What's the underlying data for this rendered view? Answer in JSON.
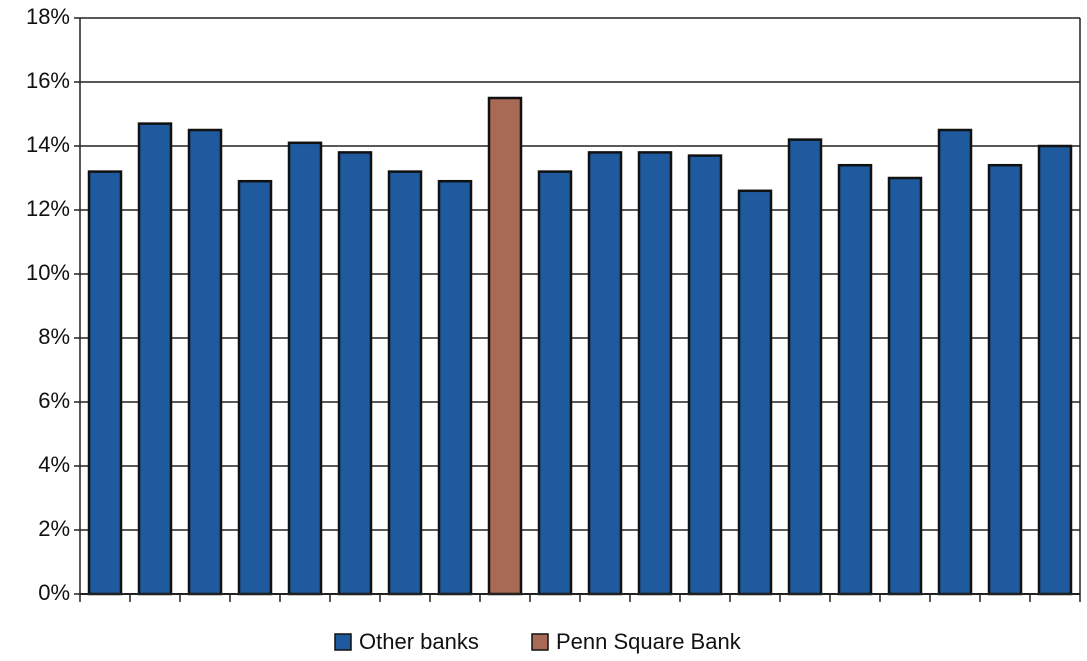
{
  "chart_data": {
    "type": "bar",
    "categories": [
      null,
      null,
      null,
      null,
      null,
      null,
      null,
      null,
      null,
      null,
      null,
      null,
      null,
      null,
      null,
      null,
      null,
      null,
      null,
      null
    ],
    "series": [
      {
        "name": "Other banks",
        "color": "#1f5a9e",
        "values": [
          13.2,
          14.7,
          14.5,
          12.9,
          14.1,
          13.8,
          13.2,
          12.9,
          null,
          13.2,
          13.8,
          13.8,
          13.7,
          12.6,
          14.2,
          13.4,
          13.0,
          14.5,
          13.4,
          14.0
        ]
      },
      {
        "name": "Penn Square Bank",
        "color": "#a86a55",
        "values": [
          null,
          null,
          null,
          null,
          null,
          null,
          null,
          null,
          15.5,
          null,
          null,
          null,
          null,
          null,
          null,
          null,
          null,
          null,
          null,
          null
        ]
      }
    ],
    "ylim": [
      0,
      18
    ],
    "yticks": [
      {
        "value": 0,
        "label": "0%"
      },
      {
        "value": 2,
        "label": "2%"
      },
      {
        "value": 4,
        "label": "4%"
      },
      {
        "value": 6,
        "label": "6%"
      },
      {
        "value": 8,
        "label": "8%"
      },
      {
        "value": 10,
        "label": "10%"
      },
      {
        "value": 12,
        "label": "12%"
      },
      {
        "value": 14,
        "label": "14%"
      },
      {
        "value": 16,
        "label": "16%"
      },
      {
        "value": 18,
        "label": "18%"
      }
    ],
    "grid": true,
    "legend": "bottom"
  }
}
